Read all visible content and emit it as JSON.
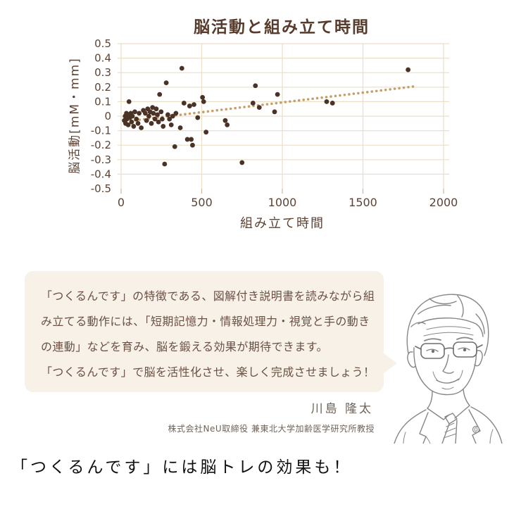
{
  "chart_data": {
    "type": "scatter",
    "title": "脳活動と組み立て時間",
    "xlabel": "組み立て時間",
    "ylabel": "脳活動[mM・mm]",
    "xlim": [
      0,
      2000
    ],
    "ylim": [
      -0.5,
      0.5
    ],
    "x_ticks": [
      0,
      500,
      1000,
      1500,
      2000
    ],
    "x_tick_labels": [
      "0",
      "500",
      "1000",
      "1500",
      "2000"
    ],
    "y_ticks": [
      0.5,
      0.4,
      0.3,
      0.2,
      0.1,
      0,
      -0.1,
      -0.2,
      -0.3,
      -0.4,
      -0.5
    ],
    "y_tick_labels": [
      "0.5",
      "0.4",
      "0.3",
      "0.2",
      "0.1",
      "0",
      "-0.1",
      "-0.2",
      "-0.3",
      "-0.4",
      "-0.5"
    ],
    "grid": true,
    "legend_position": "none",
    "points": [
      [
        20,
        -0.03
      ],
      [
        25,
        0.0
      ],
      [
        28,
        -0.05
      ],
      [
        33,
        0.02
      ],
      [
        36,
        -0.02
      ],
      [
        40,
        0.01
      ],
      [
        44,
        -0.06
      ],
      [
        49,
        0.1
      ],
      [
        55,
        -0.01
      ],
      [
        60,
        0.02
      ],
      [
        65,
        -0.04
      ],
      [
        70,
        0.0
      ],
      [
        78,
        -0.07
      ],
      [
        85,
        0.03
      ],
      [
        95,
        -0.02
      ],
      [
        105,
        -0.05
      ],
      [
        112,
        0.02
      ],
      [
        125,
        -0.08
      ],
      [
        138,
        0.04
      ],
      [
        150,
        0.02
      ],
      [
        158,
        -0.03
      ],
      [
        165,
        0.05
      ],
      [
        172,
        0.0
      ],
      [
        180,
        0.03
      ],
      [
        188,
        -0.05
      ],
      [
        195,
        0.06
      ],
      [
        200,
        0.02
      ],
      [
        210,
        -0.02
      ],
      [
        218,
        0.05
      ],
      [
        225,
        0.01
      ],
      [
        232,
        -0.04
      ],
      [
        239,
        0.15
      ],
      [
        248,
        0.03
      ],
      [
        255,
        -0.02
      ],
      [
        261,
        -0.07
      ],
      [
        270,
        -0.33
      ],
      [
        280,
        0.23
      ],
      [
        290,
        0.01
      ],
      [
        300,
        -0.02
      ],
      [
        311,
        -0.06
      ],
      [
        320,
        0.0
      ],
      [
        333,
        -0.21
      ],
      [
        340,
        0.02
      ],
      [
        367,
        -0.08
      ],
      [
        377,
        0.33
      ],
      [
        390,
        0.09
      ],
      [
        411,
        -0.16
      ],
      [
        425,
        0.07
      ],
      [
        435,
        -0.16
      ],
      [
        443,
        -0.2
      ],
      [
        452,
        0.08
      ],
      [
        475,
        -0.01
      ],
      [
        505,
        0.13
      ],
      [
        512,
        0.1
      ],
      [
        527,
        -0.11
      ],
      [
        646,
        -0.03
      ],
      [
        658,
        -0.06
      ],
      [
        750,
        -0.32
      ],
      [
        818,
        0.09
      ],
      [
        833,
        0.21
      ],
      [
        857,
        0.06
      ],
      [
        952,
        0.03
      ],
      [
        970,
        0.15
      ],
      [
        1275,
        0.1
      ],
      [
        1311,
        0.09
      ],
      [
        1780,
        0.32
      ]
    ],
    "trendline": {
      "style": "dotted",
      "from": [
        30,
        -0.036
      ],
      "to": [
        1810,
        0.204
      ]
    },
    "colors": {
      "point": "#4a3226",
      "trend": "#c69e66",
      "grid": "#eadfc9",
      "tick_mark": "#cbb79a",
      "tick_text": "#5d4334",
      "title_text": "#573b2c"
    }
  },
  "callout": {
    "bg_color": "#f7f1e8",
    "text_color": "#6b5044",
    "lines": [
      "「つくるんです」の特徴である、図解付き説明書を読みながら組",
      "み立てる動作には、「短期記憶力・情報処理力・視覚と手の動き",
      "の連動」などを育み、脳を鍛える効果が期待できます。",
      "「つくるんです」で脳を活性化させ、楽しく完成させましょう！"
    ]
  },
  "author": {
    "name": "川島 隆太",
    "affiliation": "株式会社NeU取締役 兼東北大学加齢医学研究所教授"
  },
  "caption": "「つくるんです」には脳トレの効果も！"
}
